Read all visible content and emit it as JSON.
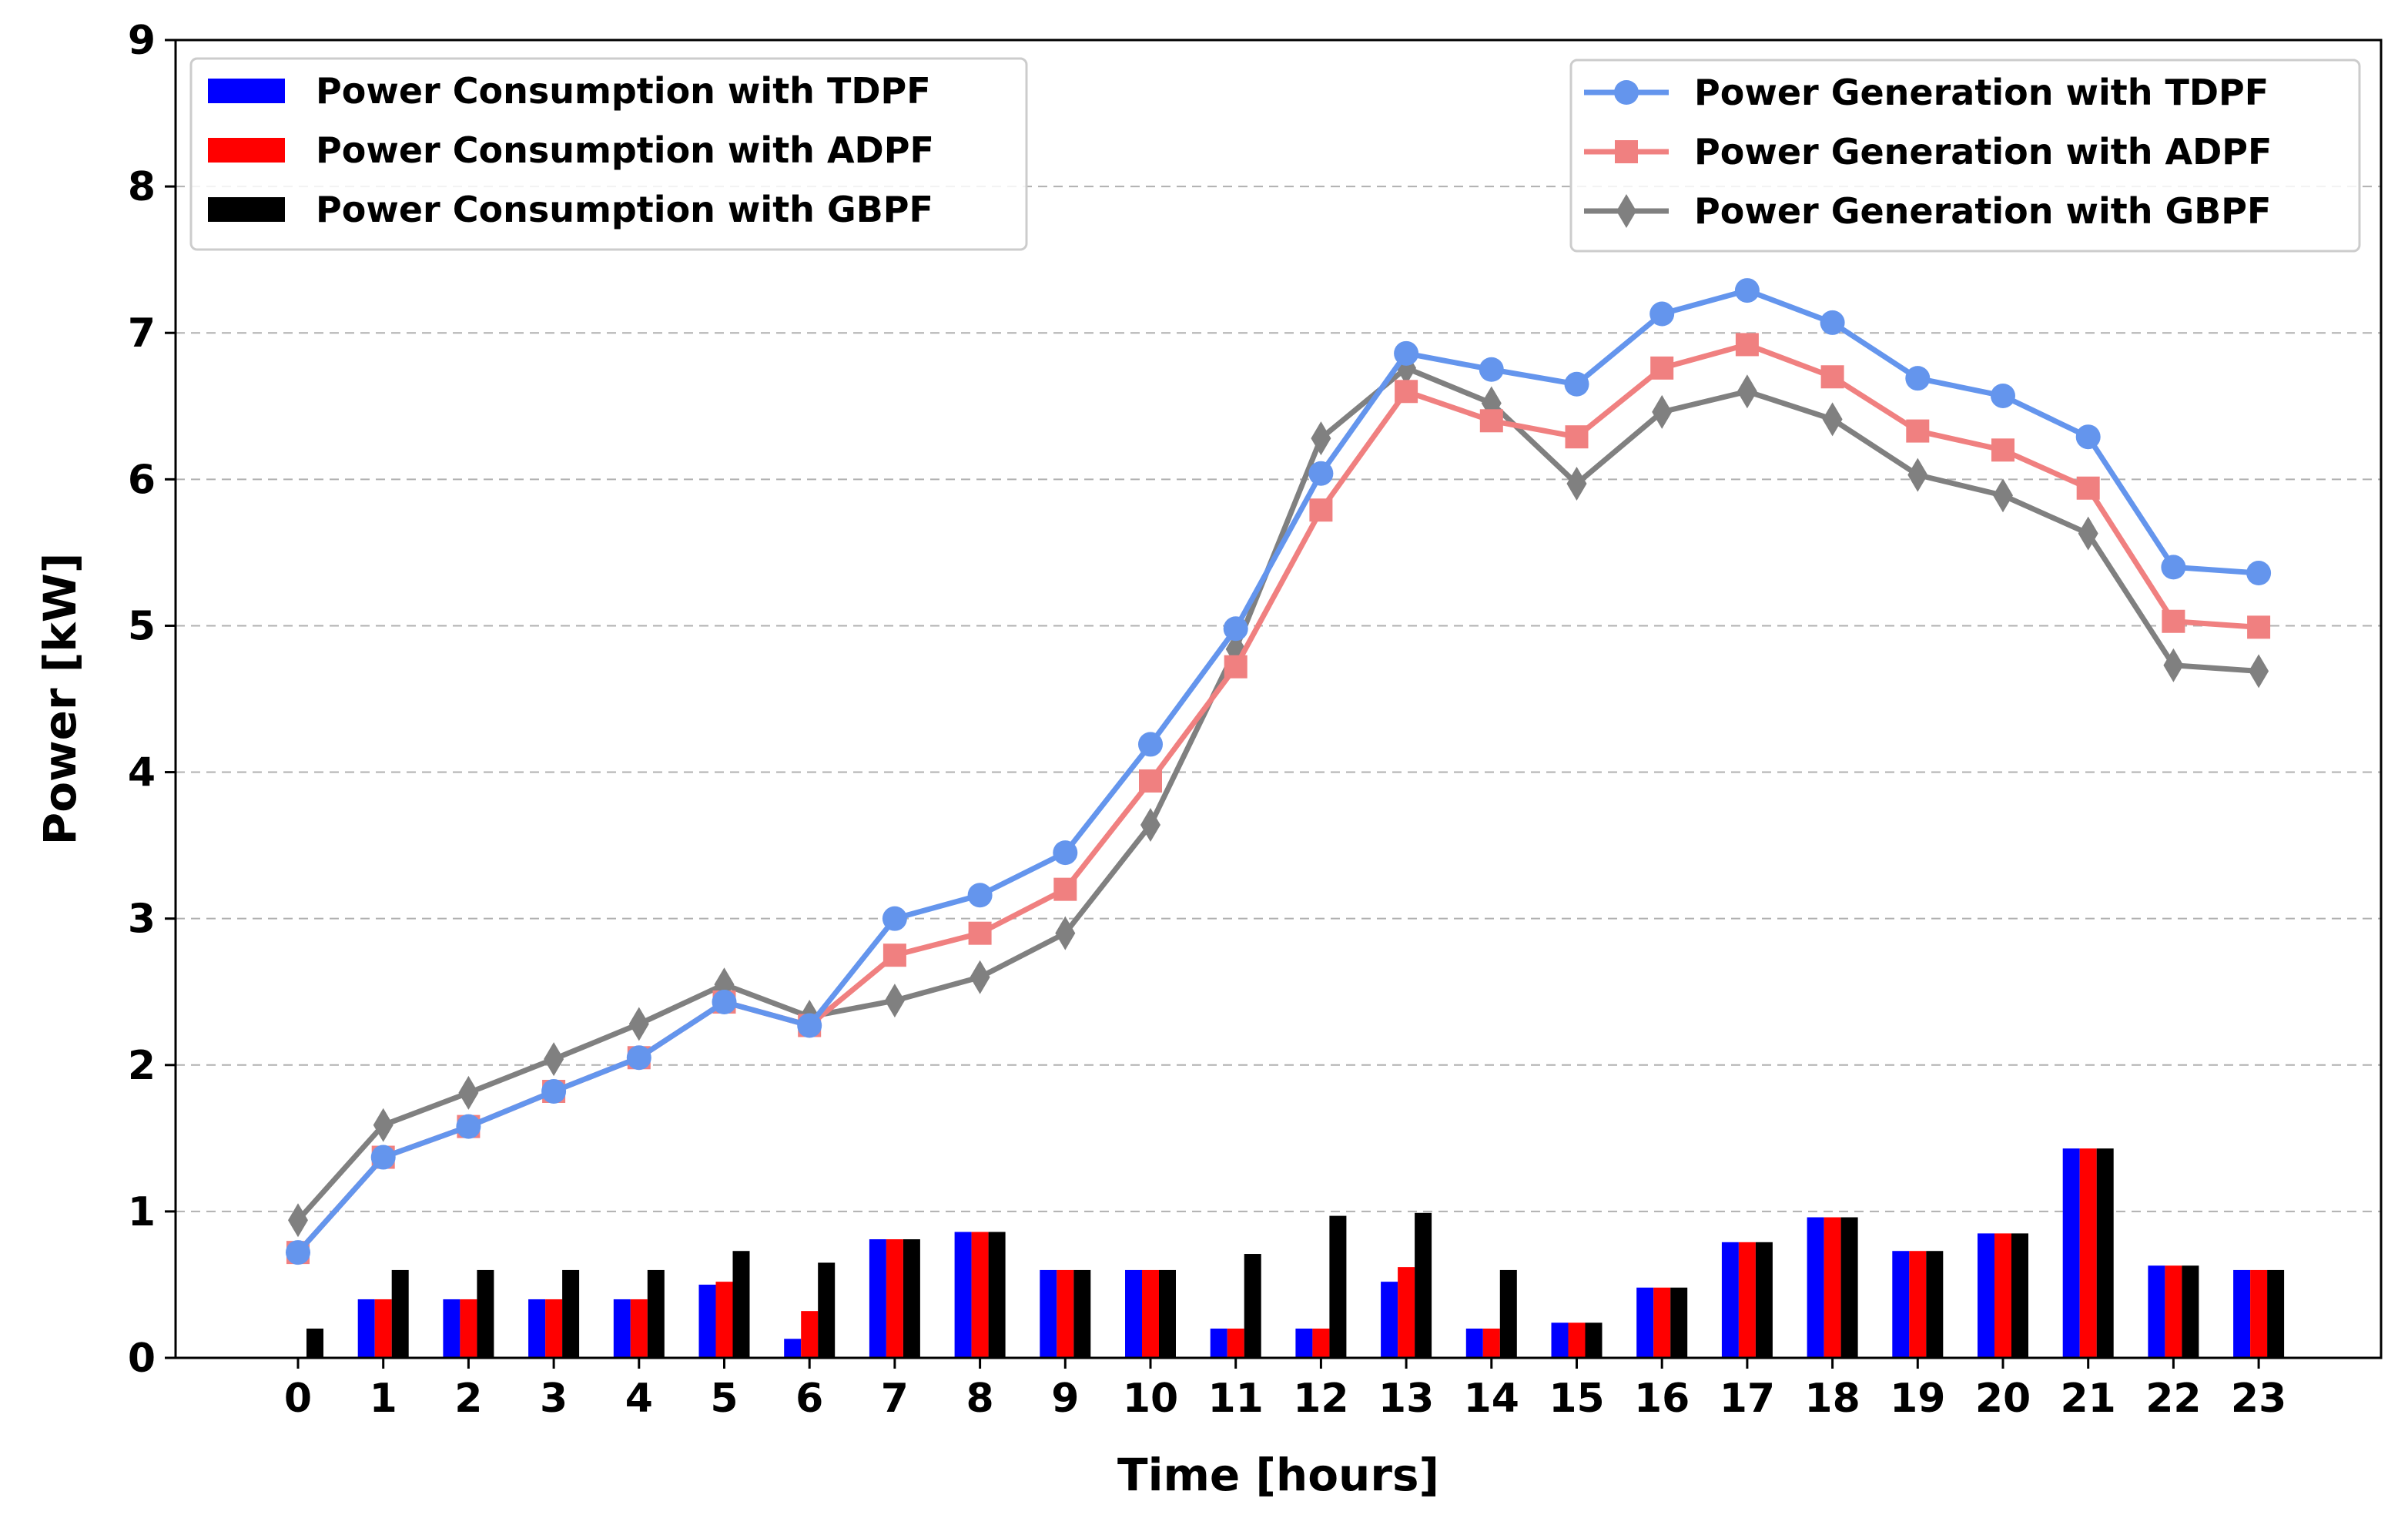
{
  "chart_data": {
    "type": "bar+line",
    "title": "",
    "xlabel": "Time [hours]",
    "ylabel": "Power [kW]",
    "ylim": [
      0,
      9
    ],
    "yticks": [
      0,
      1,
      2,
      3,
      4,
      5,
      6,
      7,
      8,
      9
    ],
    "grid": "horizontal-dashed",
    "categories": [
      "0",
      "1",
      "2",
      "3",
      "4",
      "5",
      "6",
      "7",
      "8",
      "9",
      "10",
      "11",
      "12",
      "13",
      "14",
      "15",
      "16",
      "17",
      "18",
      "19",
      "20",
      "21",
      "22",
      "23"
    ],
    "bar_series": [
      {
        "name": "Power Consumption with TDPF",
        "color": "#0000ff",
        "values": [
          0,
          0.4,
          0.4,
          0.4,
          0.4,
          0.5,
          0.13,
          0.81,
          0.86,
          0.6,
          0.6,
          0.2,
          0.2,
          0.52,
          0.2,
          0.24,
          0.48,
          0.79,
          0.96,
          0.73,
          0.85,
          1.43,
          0.63,
          0.6
        ]
      },
      {
        "name": "Power Consumption with ADPF",
        "color": "#ff0000",
        "values": [
          0,
          0.4,
          0.4,
          0.4,
          0.4,
          0.52,
          0.32,
          0.81,
          0.86,
          0.6,
          0.6,
          0.2,
          0.2,
          0.62,
          0.2,
          0.24,
          0.48,
          0.79,
          0.96,
          0.73,
          0.85,
          1.43,
          0.63,
          0.6
        ]
      },
      {
        "name": "Power Consumption with GBPF",
        "color": "#000000",
        "values": [
          0.2,
          0.6,
          0.6,
          0.6,
          0.6,
          0.73,
          0.65,
          0.81,
          0.86,
          0.6,
          0.6,
          0.71,
          0.97,
          0.99,
          0.6,
          0.24,
          0.48,
          0.79,
          0.96,
          0.73,
          0.85,
          1.43,
          0.63,
          0.6
        ]
      }
    ],
    "line_series": [
      {
        "name": "Power Generation with TDPF",
        "color": "#6495ed",
        "marker": "circle",
        "values": [
          0.72,
          1.37,
          1.58,
          1.82,
          2.05,
          2.43,
          2.27,
          3.0,
          3.16,
          3.45,
          4.19,
          4.98,
          6.04,
          6.86,
          6.75,
          6.65,
          7.13,
          7.29,
          7.07,
          6.69,
          6.57,
          6.29,
          5.4,
          5.36
        ]
      },
      {
        "name": "Power Generation with ADPF",
        "color": "#f08080",
        "marker": "square",
        "values": [
          0.72,
          1.37,
          1.58,
          1.82,
          2.05,
          2.43,
          2.27,
          2.75,
          2.9,
          3.2,
          3.94,
          4.72,
          5.79,
          6.6,
          6.4,
          6.29,
          6.76,
          6.92,
          6.7,
          6.33,
          6.2,
          5.94,
          5.03,
          4.99
        ]
      },
      {
        "name": "Power Generation with GBPF",
        "color": "#808080",
        "marker": "diamond",
        "values": [
          0.94,
          1.59,
          1.81,
          2.04,
          2.28,
          2.55,
          2.33,
          2.44,
          2.6,
          2.9,
          3.64,
          4.84,
          6.28,
          6.76,
          6.52,
          5.97,
          6.46,
          6.6,
          6.41,
          6.03,
          5.89,
          5.63,
          4.73,
          4.69
        ]
      }
    ],
    "legends": {
      "bars": {
        "placement": "top-left"
      },
      "lines": {
        "placement": "top-right"
      }
    }
  }
}
